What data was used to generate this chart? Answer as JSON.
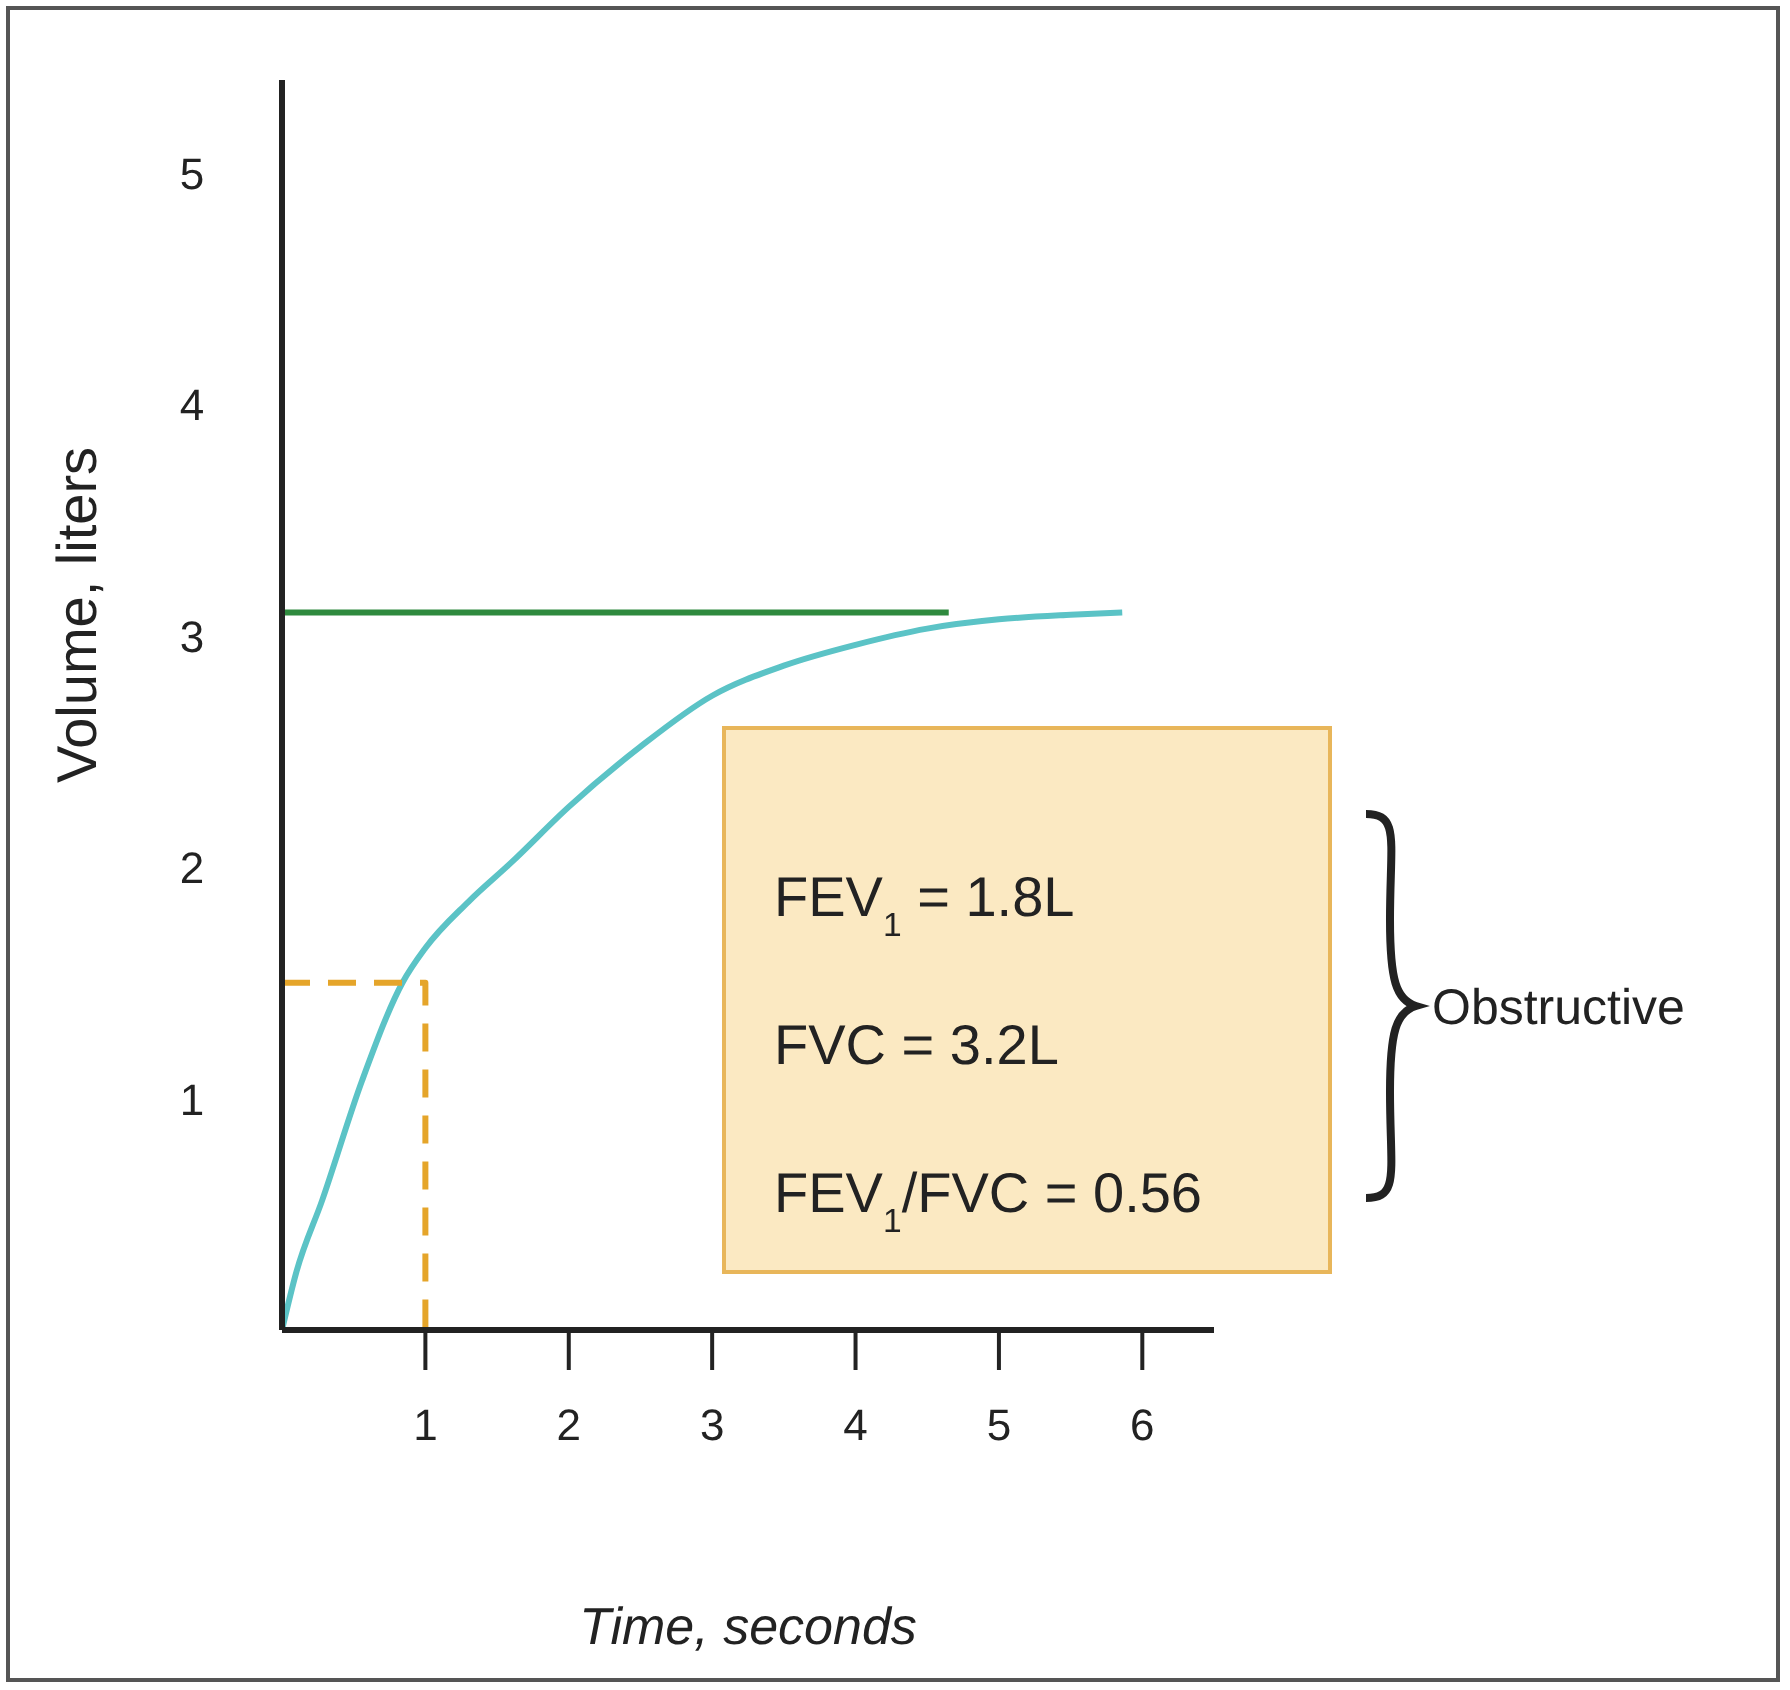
{
  "chart_data": {
    "type": "line",
    "xlabel": "Time, seconds",
    "ylabel": "Volume, liters",
    "xlim": [
      0,
      6.5
    ],
    "ylim": [
      0,
      5.4
    ],
    "xticks": [
      1,
      2,
      3,
      4,
      5,
      6
    ],
    "yticks": [
      1,
      2,
      3,
      4,
      5
    ],
    "grid": false,
    "series": [
      {
        "color": "#5bc3c6",
        "x": [
          0,
          0.1,
          0.28,
          0.56,
          0.84,
          1,
          1.3,
          1.6,
          2,
          2.5,
          3,
          3.5,
          4,
          4.5,
          5,
          5.5,
          5.86
        ],
        "values": [
          0,
          0.25,
          0.56,
          1.08,
          1.5,
          1.65,
          1.85,
          2.02,
          2.26,
          2.52,
          2.74,
          2.87,
          2.96,
          3.03,
          3.07,
          3.09,
          3.1
        ],
        "line_style": "solid"
      },
      {
        "color": "#2f8a3e",
        "x": [
          0,
          4.65
        ],
        "values": [
          3.1,
          3.1
        ],
        "line_style": "solid"
      },
      {
        "color": "#e5a52a",
        "x": [
          0,
          1,
          1
        ],
        "values": [
          1.5,
          1.5,
          0
        ],
        "line_style": "dashed"
      }
    ],
    "annotations": [
      "FEV$_{1}$ = 1.8L",
      "FVC = 3.2L",
      "FEV$_{1}$/FVC = 0.56",
      "Obstructive"
    ]
  }
}
